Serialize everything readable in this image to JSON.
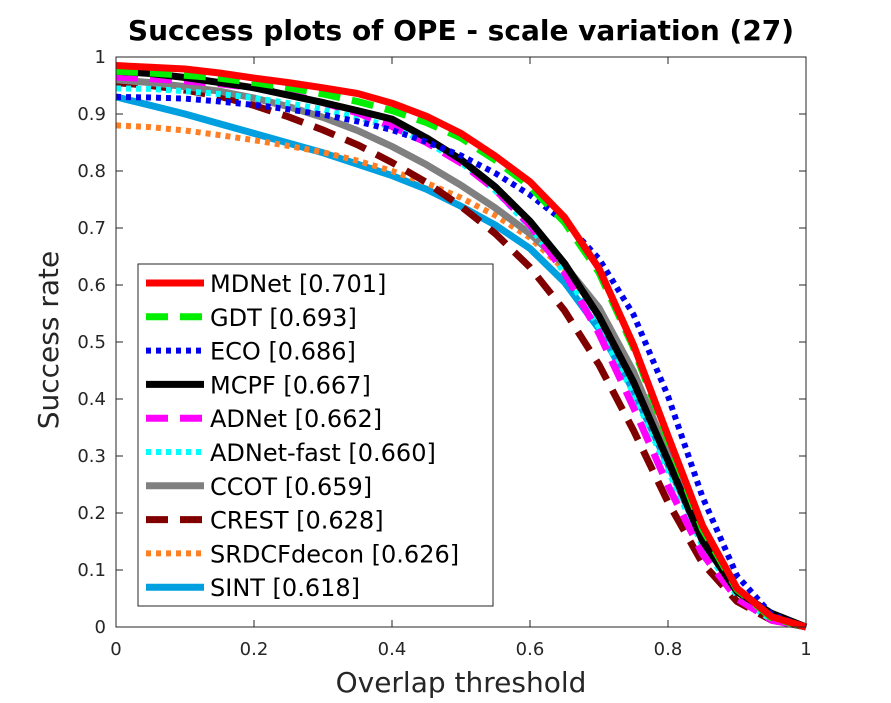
{
  "chart_data": {
    "type": "line",
    "title": "Success plots of OPE - scale variation (27)",
    "xlabel": "Overlap threshold",
    "ylabel": "Success rate",
    "xlim": [
      0,
      1
    ],
    "ylim": [
      0,
      1
    ],
    "xticks": [
      0,
      0.2,
      0.4,
      0.6,
      0.8,
      1
    ],
    "xtick_labels": [
      "0",
      "0.2",
      "0.4",
      "0.6",
      "0.8",
      "1"
    ],
    "yticks": [
      0,
      0.1,
      0.2,
      0.3,
      0.4,
      0.5,
      0.6,
      0.7,
      0.8,
      0.9,
      1
    ],
    "ytick_labels": [
      "0",
      "0.1",
      "0.2",
      "0.3",
      "0.4",
      "0.5",
      "0.6",
      "0.7",
      "0.8",
      "0.9",
      "1"
    ],
    "grid": false,
    "legend_position": "lower-left",
    "x": [
      0,
      0.05,
      0.1,
      0.15,
      0.2,
      0.25,
      0.3,
      0.35,
      0.4,
      0.45,
      0.5,
      0.55,
      0.6,
      0.65,
      0.7,
      0.75,
      0.8,
      0.85,
      0.9,
      0.95,
      1
    ],
    "series": [
      {
        "name": "MDNet [0.701]",
        "color": "#ff0000",
        "dash": "solid",
        "values": [
          0.985,
          0.982,
          0.979,
          0.972,
          0.963,
          0.955,
          0.946,
          0.936,
          0.919,
          0.896,
          0.866,
          0.826,
          0.781,
          0.719,
          0.629,
          0.495,
          0.335,
          0.178,
          0.068,
          0.018,
          0.0
        ]
      },
      {
        "name": "GDT [0.693]",
        "color": "#00ee00",
        "dash": "longdash",
        "values": [
          0.975,
          0.972,
          0.968,
          0.963,
          0.955,
          0.946,
          0.935,
          0.922,
          0.906,
          0.885,
          0.858,
          0.819,
          0.773,
          0.71,
          0.622,
          0.49,
          0.328,
          0.172,
          0.066,
          0.016,
          0.0
        ]
      },
      {
        "name": "ECO [0.686]",
        "color": "#0000ee",
        "dash": "dotted",
        "values": [
          0.93,
          0.929,
          0.927,
          0.922,
          0.916,
          0.908,
          0.899,
          0.887,
          0.872,
          0.851,
          0.827,
          0.796,
          0.758,
          0.711,
          0.646,
          0.548,
          0.405,
          0.228,
          0.09,
          0.022,
          0.0
        ]
      },
      {
        "name": "MCPF [0.667]",
        "color": "#000000",
        "dash": "solid",
        "values": [
          0.975,
          0.971,
          0.964,
          0.955,
          0.946,
          0.933,
          0.92,
          0.906,
          0.891,
          0.858,
          0.82,
          0.772,
          0.712,
          0.638,
          0.545,
          0.43,
          0.292,
          0.151,
          0.062,
          0.024,
          0.0
        ]
      },
      {
        "name": "ADNet [0.662]",
        "color": "#ff00ff",
        "dash": "longdash",
        "values": [
          0.965,
          0.962,
          0.958,
          0.953,
          0.946,
          0.935,
          0.92,
          0.902,
          0.878,
          0.85,
          0.814,
          0.767,
          0.705,
          0.622,
          0.515,
          0.385,
          0.248,
          0.128,
          0.05,
          0.012,
          0.0
        ]
      },
      {
        "name": "ADNet-fast [0.660]",
        "color": "#00ffff",
        "dash": "dotted",
        "values": [
          0.945,
          0.944,
          0.94,
          0.935,
          0.928,
          0.919,
          0.908,
          0.894,
          0.877,
          0.851,
          0.815,
          0.765,
          0.702,
          0.622,
          0.526,
          0.41,
          0.275,
          0.142,
          0.055,
          0.012,
          0.0
        ]
      },
      {
        "name": "CCOT [0.659]",
        "color": "#808080",
        "dash": "solid",
        "values": [
          0.96,
          0.955,
          0.948,
          0.94,
          0.928,
          0.913,
          0.894,
          0.871,
          0.843,
          0.811,
          0.775,
          0.735,
          0.69,
          0.635,
          0.56,
          0.448,
          0.304,
          0.157,
          0.063,
          0.02,
          0.0
        ]
      },
      {
        "name": "CREST [0.628]",
        "color": "#800000",
        "dash": "longdash",
        "values": [
          0.955,
          0.95,
          0.942,
          0.931,
          0.915,
          0.895,
          0.872,
          0.846,
          0.815,
          0.78,
          0.738,
          0.69,
          0.631,
          0.555,
          0.46,
          0.345,
          0.219,
          0.112,
          0.045,
          0.012,
          0.0
        ]
      },
      {
        "name": "SRDCFdecon [0.626]",
        "color": "#ff7f24",
        "dash": "dotted",
        "values": [
          0.88,
          0.877,
          0.871,
          0.863,
          0.854,
          0.844,
          0.833,
          0.818,
          0.8,
          0.779,
          0.753,
          0.722,
          0.683,
          0.627,
          0.551,
          0.447,
          0.306,
          0.161,
          0.066,
          0.022,
          0.0
        ]
      },
      {
        "name": "SINT [0.618]",
        "color": "#00a0e0",
        "dash": "solid",
        "values": [
          0.93,
          0.915,
          0.9,
          0.883,
          0.866,
          0.849,
          0.832,
          0.812,
          0.792,
          0.768,
          0.738,
          0.705,
          0.664,
          0.605,
          0.523,
          0.415,
          0.285,
          0.152,
          0.062,
          0.02,
          0.0
        ]
      }
    ]
  }
}
